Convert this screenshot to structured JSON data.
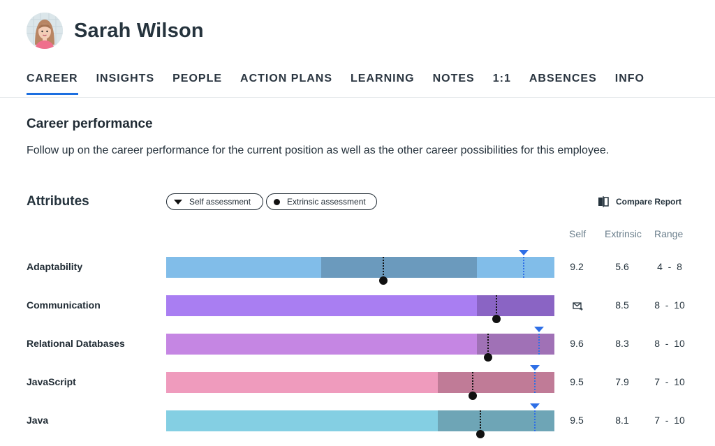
{
  "employee": {
    "name": "Sarah Wilson"
  },
  "tabs": [
    {
      "label": "CAREER",
      "active": true
    },
    {
      "label": "INSIGHTS"
    },
    {
      "label": "PEOPLE"
    },
    {
      "label": "ACTION PLANS"
    },
    {
      "label": "LEARNING"
    },
    {
      "label": "NOTES"
    },
    {
      "label": "1:1"
    },
    {
      "label": "ABSENCES"
    },
    {
      "label": "INFO"
    }
  ],
  "section": {
    "title": "Career performance",
    "description": "Follow up on the career performance for the current position as well as the other career possibilities for this employee."
  },
  "attributes": {
    "title": "Attributes",
    "legend": {
      "self": "Self assessment",
      "extrinsic": "Extrinsic assessment"
    },
    "compare_label": "Compare Report",
    "columns": {
      "self": "Self",
      "extrinsic": "Extrinsic",
      "range": "Range"
    },
    "rows": [
      {
        "label": "Adaptability",
        "self": "9.2",
        "extrinsic": "5.6",
        "range": "4  -  8",
        "self_value": 9.2,
        "extrinsic_value": 5.6,
        "range_min": 4,
        "range_max": 8,
        "light_color": "#81bde9",
        "dark_color": "#6b9abd"
      },
      {
        "label": "Communication",
        "self": "",
        "self_icon": "mail-icon",
        "extrinsic": "8.5",
        "range": "8  -  10",
        "self_value": null,
        "extrinsic_value": 8.5,
        "range_min": 8,
        "range_max": 10,
        "light_color": "#a97ef2",
        "dark_color": "#8a64c4"
      },
      {
        "label": "Relational Databases",
        "self": "9.6",
        "extrinsic": "8.3",
        "range": "8  -  10",
        "self_value": 9.6,
        "extrinsic_value": 8.3,
        "range_min": 8,
        "range_max": 10,
        "light_color": "#c586e3",
        "dark_color": "#a071b6"
      },
      {
        "label": "JavaScript",
        "self": "9.5",
        "extrinsic": "7.9",
        "range": "7  -  10",
        "self_value": 9.5,
        "extrinsic_value": 7.9,
        "range_min": 7,
        "range_max": 10,
        "light_color": "#ef9bbd",
        "dark_color": "#c07b97"
      },
      {
        "label": "Java",
        "self": "9.5",
        "extrinsic": "8.1",
        "range": "7  -  10",
        "self_value": 9.5,
        "extrinsic_value": 8.1,
        "range_min": 7,
        "range_max": 10,
        "light_color": "#84cfe3",
        "dark_color": "#6ea5b6"
      }
    ]
  }
}
